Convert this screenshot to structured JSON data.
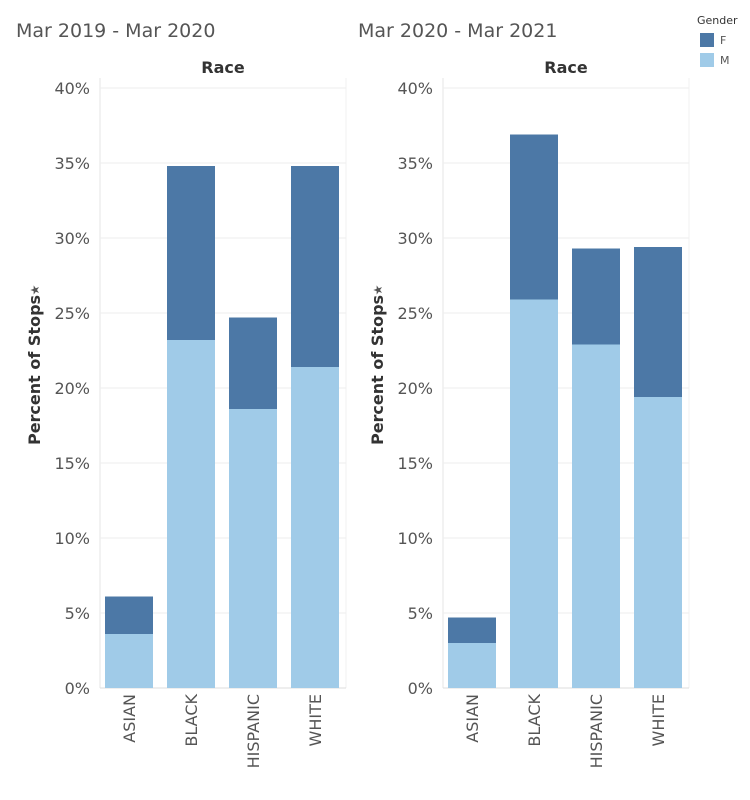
{
  "panels_titles": [
    "Mar 2019 - Mar 2020",
    "Mar 2020 - Mar 2021"
  ],
  "legend": {
    "title": "Gender",
    "items": [
      {
        "label": "F",
        "color": "#4c78a6"
      },
      {
        "label": "M",
        "color": "#a0cbe8"
      }
    ]
  },
  "chart_data": [
    {
      "type": "bar",
      "stacked": true,
      "title": "Mar 2019 - Mar 2020",
      "column_header": "Race",
      "xlabel": "",
      "ylabel": "Percent of Stops",
      "ylim": [
        0,
        40
      ],
      "yticks": [
        "0%",
        "5%",
        "10%",
        "15%",
        "20%",
        "25%",
        "30%",
        "35%",
        "40%"
      ],
      "grid": true,
      "categories": [
        "ASIAN",
        "BLACK",
        "HISPANIC",
        "WHITE"
      ],
      "series": [
        {
          "name": "M",
          "color": "#a0cbe8",
          "values": [
            3.6,
            23.2,
            18.6,
            21.4
          ]
        },
        {
          "name": "F",
          "color": "#4c78a6",
          "values": [
            2.5,
            11.6,
            6.1,
            13.4
          ]
        }
      ]
    },
    {
      "type": "bar",
      "stacked": true,
      "title": "Mar 2020 - Mar 2021",
      "column_header": "Race",
      "xlabel": "",
      "ylabel": "Percent of Stops",
      "ylim": [
        0,
        40
      ],
      "yticks": [
        "0%",
        "5%",
        "10%",
        "15%",
        "20%",
        "25%",
        "30%",
        "35%",
        "40%"
      ],
      "grid": true,
      "categories": [
        "ASIAN",
        "BLACK",
        "HISPANIC",
        "WHITE"
      ],
      "series": [
        {
          "name": "M",
          "color": "#a0cbe8",
          "values": [
            3.0,
            25.9,
            22.9,
            19.4
          ]
        },
        {
          "name": "F",
          "color": "#4c78a6",
          "values": [
            1.7,
            11.0,
            6.4,
            10.0
          ]
        }
      ]
    }
  ]
}
